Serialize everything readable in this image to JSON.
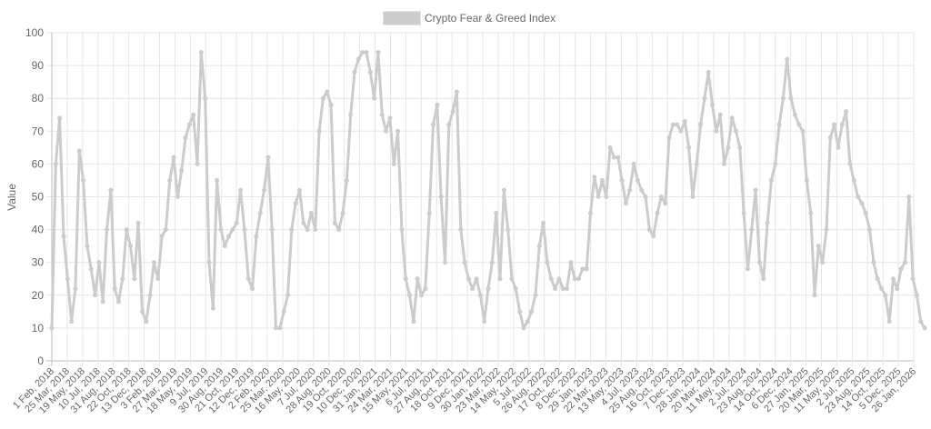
{
  "chart_data": {
    "type": "line",
    "legend": {
      "position": "top",
      "color": "#cccccc"
    },
    "ylabel": "Value",
    "xlabel": "",
    "ylim": [
      0,
      100
    ],
    "y_ticks": [
      0,
      10,
      20,
      30,
      40,
      50,
      60,
      70,
      80,
      90,
      100
    ],
    "grid": true,
    "x_labels": [
      "1 Feb, 2018",
      "25 Mar, 2018",
      "19 May, 2018",
      "10 Jul, 2018",
      "31 Aug, 2018",
      "22 Oct, 2018",
      "13 Dec, 2018",
      "3 Feb, 2019",
      "27 Mar, 2019",
      "18 May, 2019",
      "9 Jul, 2019",
      "30 Aug, 2019",
      "21 Oct, 2019",
      "12 Dec, 2019",
      "2 Feb, 2020",
      "25 Mar, 2020",
      "16 May, 2020",
      "7 Jul, 2020",
      "28 Aug, 2020",
      "19 Oct, 2020",
      "10 Dec, 2020",
      "31 Jan, 2021",
      "24 Mar, 2021",
      "15 May, 2021",
      "6 Jul, 2021",
      "27 Aug, 2021",
      "18 Oct, 2021",
      "9 Dec, 2021",
      "30 Jan, 2022",
      "23 Mar, 2022",
      "14 May, 2022",
      "5 Jul, 2022",
      "26 Aug, 2022",
      "17 Oct, 2022",
      "8 Dec, 2022",
      "29 Jan, 2023",
      "22 Mar, 2023",
      "13 May, 2023",
      "4 Jul, 2023",
      "25 Aug, 2023",
      "16 Oct, 2023",
      "7 Dec, 2023",
      "28 Jan, 2024",
      "20 Mar, 2024",
      "11 May, 2024",
      "2 Jul, 2024",
      "23 Aug, 2024",
      "14 Oct, 2024",
      "6 Dec, 2024",
      "27 Jan, 2025",
      "20 Mar, 2025",
      "11 May, 2025",
      "2 Jul, 2025",
      "23 Aug, 2025",
      "14 Oct, 2025",
      "5 Dec, 2025",
      "26 Jan, 2026"
    ],
    "series": [
      {
        "name": "Crypto Fear & Greed Index",
        "color": "#cccccc",
        "values": [
          10,
          60,
          74,
          38,
          25,
          12,
          22,
          64,
          55,
          35,
          28,
          20,
          30,
          18,
          40,
          52,
          22,
          18,
          25,
          40,
          35,
          25,
          42,
          15,
          12,
          20,
          30,
          25,
          38,
          40,
          55,
          62,
          50,
          58,
          68,
          72,
          75,
          60,
          94,
          80,
          30,
          16,
          55,
          40,
          35,
          38,
          40,
          42,
          52,
          40,
          25,
          22,
          38,
          45,
          52,
          62,
          40,
          10,
          10,
          15,
          20,
          40,
          48,
          52,
          42,
          40,
          45,
          40,
          70,
          80,
          82,
          78,
          42,
          40,
          45,
          55,
          75,
          88,
          92,
          94,
          94,
          88,
          80,
          94,
          75,
          70,
          74,
          60,
          70,
          40,
          25,
          20,
          12,
          25,
          20,
          22,
          45,
          72,
          78,
          50,
          30,
          72,
          76,
          82,
          40,
          30,
          25,
          22,
          25,
          20,
          12,
          22,
          30,
          45,
          25,
          52,
          40,
          25,
          22,
          15,
          10,
          12,
          15,
          20,
          35,
          42,
          30,
          25,
          22,
          25,
          22,
          22,
          30,
          25,
          25,
          28,
          28,
          45,
          56,
          50,
          55,
          50,
          65,
          62,
          62,
          55,
          48,
          52,
          60,
          55,
          52,
          50,
          40,
          38,
          45,
          50,
          48,
          68,
          72,
          72,
          70,
          73,
          65,
          50,
          60,
          72,
          80,
          88,
          78,
          70,
          75,
          60,
          65,
          74,
          70,
          65,
          45,
          28,
          40,
          52,
          30,
          25,
          42,
          55,
          60,
          72,
          80,
          92,
          80,
          75,
          72,
          70,
          55,
          45,
          20,
          35,
          30,
          40,
          68,
          72,
          65,
          72,
          76,
          60,
          55,
          50,
          48,
          45,
          40,
          30,
          25,
          22,
          20,
          12,
          25,
          22,
          28,
          30,
          50,
          25,
          20,
          12,
          10
        ]
      }
    ]
  }
}
